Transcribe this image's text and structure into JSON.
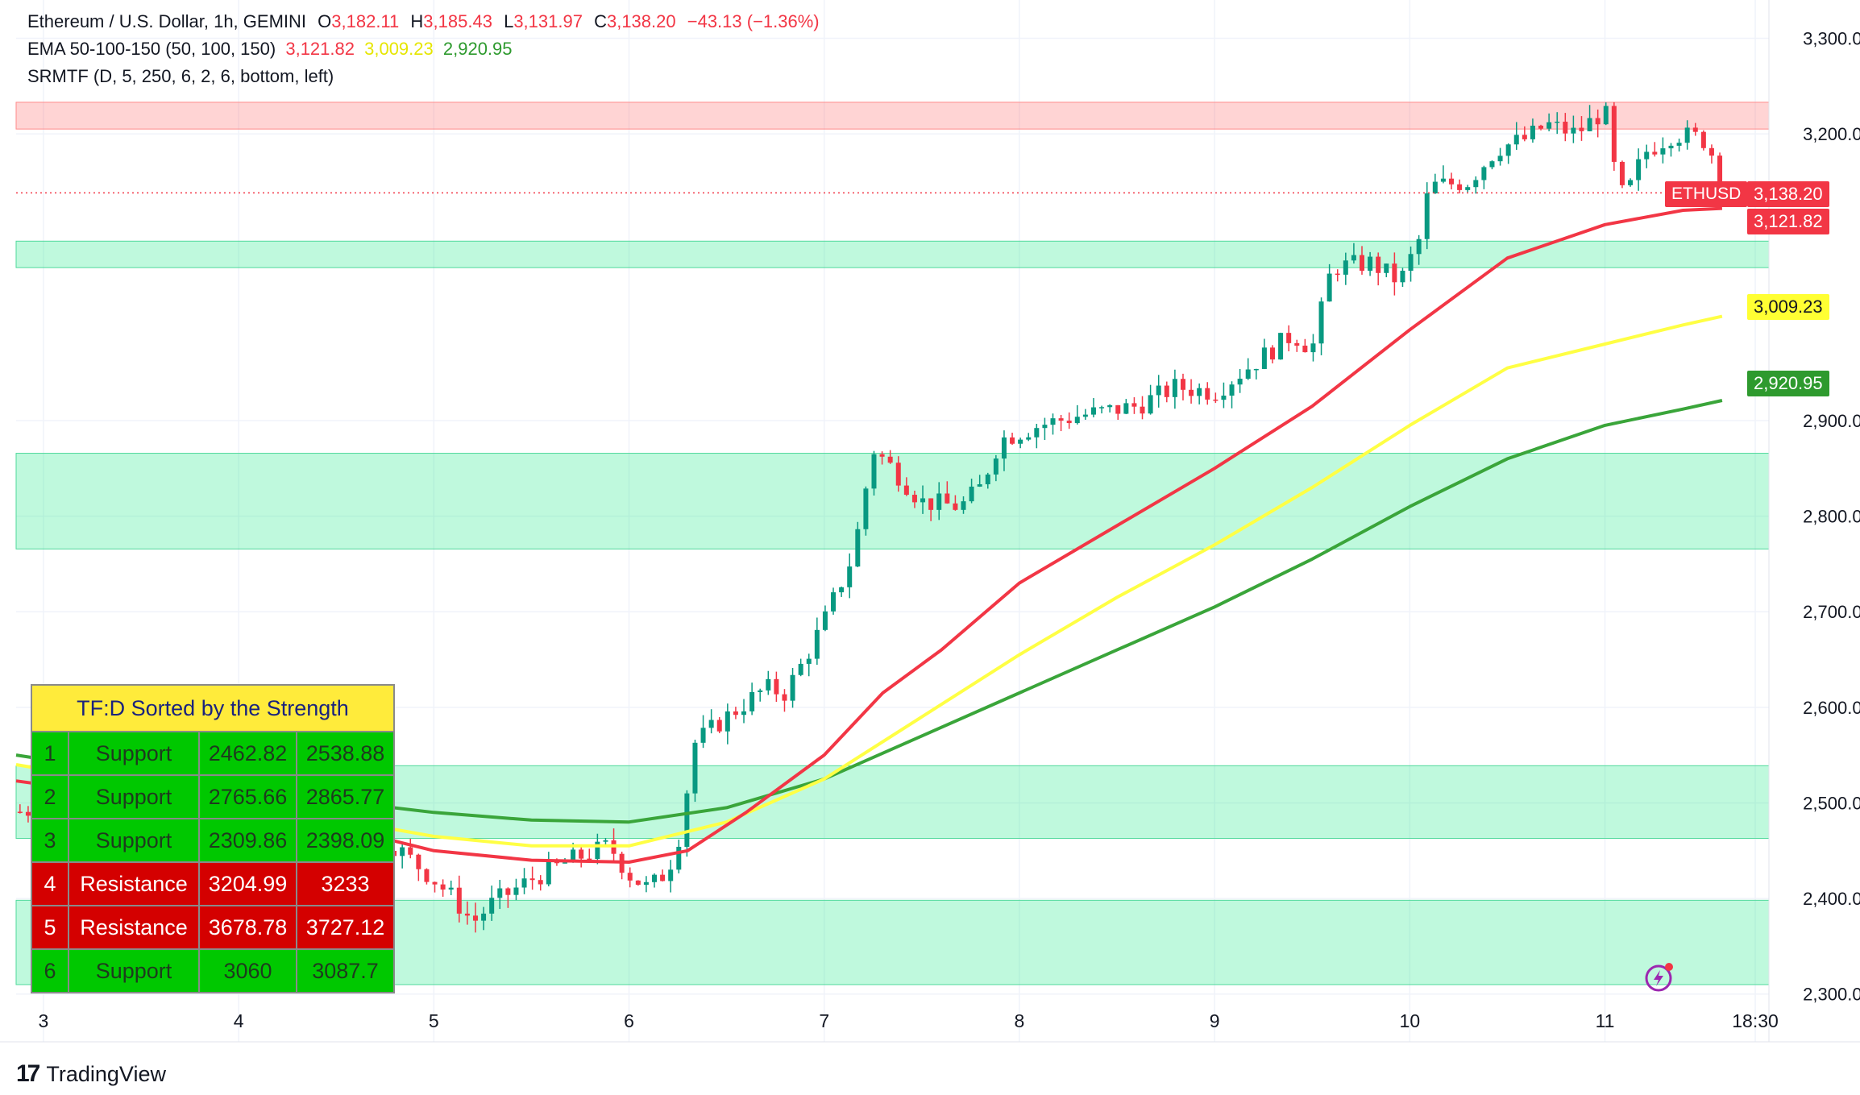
{
  "header": {
    "symbol_line_label": "Ethereum / U.S. Dollar, 1h, GEMINI",
    "o_label": "O",
    "o_value": "3,182.11",
    "h_label": "H",
    "h_value": "3,185.43",
    "l_label": "L",
    "l_value": "3,131.97",
    "c_label": "C",
    "c_value": "3,138.20",
    "change": "−43.13 (−1.36%)",
    "ema_label": "EMA 50-100-150 (50, 100, 150)",
    "ema50": "3,121.82",
    "ema100": "3,009.23",
    "ema150": "2,920.95",
    "srmtf_label": "SRMTF (D, 5, 250, 6, 2, 6, bottom, left)"
  },
  "price_tags": {
    "symbol": "ETHUSD",
    "last": "3,138.20",
    "ema50": "3,121.82",
    "ema100": "3,009.23",
    "ema150": "2,920.95"
  },
  "sr_table": {
    "title": "TF:D Sorted by the Strength",
    "rows": [
      {
        "n": "1",
        "type": "Support",
        "low": "2462.82",
        "high": "2538.88"
      },
      {
        "n": "2",
        "type": "Support",
        "low": "2765.66",
        "high": "2865.77"
      },
      {
        "n": "3",
        "type": "Support",
        "low": "2309.86",
        "high": "2398.09"
      },
      {
        "n": "4",
        "type": "Resistance",
        "low": "3204.99",
        "high": "3233"
      },
      {
        "n": "5",
        "type": "Resistance",
        "low": "3678.78",
        "high": "3727.12"
      },
      {
        "n": "6",
        "type": "Support",
        "low": "3060",
        "high": "3087.7"
      }
    ]
  },
  "branding": {
    "logo_text": "TradingView",
    "logo_mark": "17"
  },
  "colors": {
    "up": "#089981",
    "down": "#f23645",
    "ema50": "#f23645",
    "ema100": "#ffff44",
    "ema150": "#3aa53a",
    "support_zone": "rgba(0,230,118,0.25)",
    "resistance_zone": "rgba(255,82,82,0.25)"
  },
  "chart_data": {
    "type": "candlestick",
    "title": "Ethereum / U.S. Dollar, 1h, GEMINI",
    "ylim": [
      2250,
      3340
    ],
    "y_ticks": [
      "3,300.00",
      "3,200.00",
      "2,900.00",
      "2,800.00",
      "2,700.00",
      "2,600.00",
      "2,500.00",
      "2,400.00",
      "2,300.00"
    ],
    "y_tick_values": [
      3300,
      3200,
      2900,
      2800,
      2700,
      2600,
      2500,
      2400,
      2300
    ],
    "x_ticks": [
      "3",
      "4",
      "5",
      "6",
      "7",
      "8",
      "9",
      "10",
      "11",
      "18:30"
    ],
    "x_tick_days": [
      3,
      4,
      5,
      6,
      7,
      8,
      9,
      10,
      11,
      11.77
    ],
    "x_range_days": [
      2.86,
      11.84
    ],
    "last_price": 3138.2,
    "zones": [
      {
        "kind": "resistance",
        "low": 3204.99,
        "high": 3233
      },
      {
        "kind": "support",
        "low": 3060,
        "high": 3087.7
      },
      {
        "kind": "support",
        "low": 2765.66,
        "high": 2865.77
      },
      {
        "kind": "support",
        "low": 2462.82,
        "high": 2538.88
      },
      {
        "kind": "support",
        "low": 2309.86,
        "high": 2398.09
      }
    ],
    "close_path": [
      [
        2.86,
        2490
      ],
      [
        3.0,
        2495
      ],
      [
        3.2,
        2470
      ],
      [
        3.4,
        2455
      ],
      [
        3.6,
        2465
      ],
      [
        3.8,
        2448
      ],
      [
        4.0,
        2460
      ],
      [
        4.2,
        2470
      ],
      [
        4.4,
        2480
      ],
      [
        4.6,
        2470
      ],
      [
        4.8,
        2455
      ],
      [
        5.0,
        2420
      ],
      [
        5.1,
        2400
      ],
      [
        5.2,
        2375
      ],
      [
        5.3,
        2395
      ],
      [
        5.5,
        2420
      ],
      [
        5.7,
        2440
      ],
      [
        5.9,
        2455
      ],
      [
        6.0,
        2425
      ],
      [
        6.1,
        2410
      ],
      [
        6.2,
        2430
      ],
      [
        6.28,
        2480
      ],
      [
        6.32,
        2560
      ],
      [
        6.5,
        2590
      ],
      [
        6.7,
        2620
      ],
      [
        6.8,
        2615
      ],
      [
        6.9,
        2650
      ],
      [
        7.0,
        2690
      ],
      [
        7.15,
        2760
      ],
      [
        7.25,
        2870
      ],
      [
        7.35,
        2850
      ],
      [
        7.5,
        2815
      ],
      [
        7.7,
        2810
      ],
      [
        7.8,
        2830
      ],
      [
        7.9,
        2880
      ],
      [
        8.1,
        2895
      ],
      [
        8.3,
        2905
      ],
      [
        8.6,
        2915
      ],
      [
        8.8,
        2935
      ],
      [
        9.0,
        2930
      ],
      [
        9.2,
        2960
      ],
      [
        9.4,
        2990
      ],
      [
        9.5,
        2975
      ],
      [
        9.6,
        3060
      ],
      [
        9.8,
        3065
      ],
      [
        9.95,
        3045
      ],
      [
        10.05,
        3090
      ],
      [
        10.1,
        3145
      ],
      [
        10.3,
        3150
      ],
      [
        10.45,
        3185
      ],
      [
        10.6,
        3195
      ],
      [
        10.7,
        3210
      ],
      [
        10.85,
        3200
      ],
      [
        11.0,
        3225
      ],
      [
        11.05,
        3160
      ],
      [
        11.1,
        3130
      ],
      [
        11.2,
        3180
      ],
      [
        11.35,
        3200
      ],
      [
        11.5,
        3195
      ],
      [
        11.56,
        3175
      ],
      [
        11.6,
        3138
      ]
    ],
    "ema50_path": [
      [
        2.86,
        2523
      ],
      [
        3.5,
        2505
      ],
      [
        4.0,
        2490
      ],
      [
        4.5,
        2475
      ],
      [
        5.0,
        2450
      ],
      [
        5.5,
        2440
      ],
      [
        6.0,
        2438
      ],
      [
        6.3,
        2450
      ],
      [
        6.6,
        2490
      ],
      [
        7.0,
        2550
      ],
      [
        7.3,
        2615
      ],
      [
        7.6,
        2660
      ],
      [
        8.0,
        2730
      ],
      [
        8.5,
        2790
      ],
      [
        9.0,
        2850
      ],
      [
        9.5,
        2915
      ],
      [
        10.0,
        2995
      ],
      [
        10.5,
        3070
      ],
      [
        11.0,
        3105
      ],
      [
        11.4,
        3120
      ],
      [
        11.6,
        3122
      ]
    ],
    "ema100_path": [
      [
        2.86,
        2540
      ],
      [
        3.5,
        2518
      ],
      [
        4.0,
        2500
      ],
      [
        4.5,
        2483
      ],
      [
        5.0,
        2465
      ],
      [
        5.5,
        2455
      ],
      [
        6.0,
        2455
      ],
      [
        6.5,
        2480
      ],
      [
        7.0,
        2525
      ],
      [
        7.5,
        2590
      ],
      [
        8.0,
        2655
      ],
      [
        8.5,
        2715
      ],
      [
        9.0,
        2770
      ],
      [
        9.5,
        2830
      ],
      [
        10.0,
        2895
      ],
      [
        10.5,
        2955
      ],
      [
        11.0,
        2980
      ],
      [
        11.4,
        3000
      ],
      [
        11.6,
        3009
      ]
    ],
    "ema150_path": [
      [
        2.86,
        2550
      ],
      [
        3.5,
        2530
      ],
      [
        4.0,
        2515
      ],
      [
        4.5,
        2502
      ],
      [
        5.0,
        2490
      ],
      [
        5.5,
        2482
      ],
      [
        6.0,
        2480
      ],
      [
        6.5,
        2495
      ],
      [
        7.0,
        2525
      ],
      [
        7.5,
        2570
      ],
      [
        8.0,
        2615
      ],
      [
        8.5,
        2660
      ],
      [
        9.0,
        2705
      ],
      [
        9.5,
        2755
      ],
      [
        10.0,
        2810
      ],
      [
        10.5,
        2860
      ],
      [
        11.0,
        2895
      ],
      [
        11.4,
        2912
      ],
      [
        11.6,
        2921
      ]
    ]
  }
}
